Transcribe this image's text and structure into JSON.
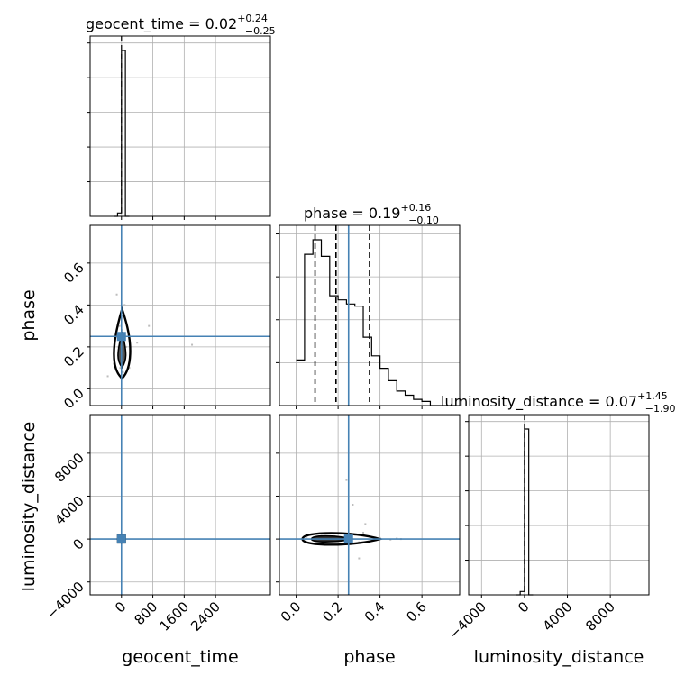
{
  "chart_data": {
    "type": "corner",
    "parameters": [
      "geocent_time",
      "phase",
      "luminosity_distance"
    ],
    "truths": {
      "geocent_time": 0.0,
      "phase": 0.25,
      "luminosity_distance": 0.0
    },
    "accent_color": "#4682b4",
    "grid": true,
    "titles": [
      {
        "param": "geocent_time",
        "label": "geocent_time = 0.02",
        "plus": "+0.24",
        "minus": "−0.25"
      },
      {
        "param": "phase",
        "label": "phase = 0.19",
        "plus": "+0.16",
        "minus": "−0.10"
      },
      {
        "param": "luminosity_distance",
        "label": "luminosity_distance = 0.07",
        "plus": "+1.45",
        "minus": "−1.90"
      }
    ],
    "axes": {
      "geocent_time": {
        "label": "geocent_time",
        "range": [
          -800,
          3800
        ],
        "ticks": [
          0,
          800,
          1600,
          2400
        ],
        "tick_labels": [
          "0",
          "800",
          "1600",
          "2400"
        ]
      },
      "phase": {
        "label": "phase",
        "range": [
          -0.08,
          0.78
        ],
        "ticks": [
          0.0,
          0.2,
          0.4,
          0.6
        ],
        "tick_labels": [
          "0.0",
          "0.2",
          "0.4",
          "0.6"
        ]
      },
      "luminosity_distance": {
        "label": "luminosity_distance",
        "range": [
          -5200,
          11600
        ],
        "ticks": [
          -4000,
          0,
          4000,
          8000
        ],
        "tick_labels": [
          "−4000",
          "0",
          "4000",
          "8000"
        ]
      }
    },
    "hist_geocent_time": {
      "bin_edges": [
        -200,
        -100,
        0,
        100,
        200
      ],
      "counts": [
        0,
        0.02,
        1.0,
        0.0
      ]
    },
    "hist_phase": {
      "bin_edges": [
        0.0,
        0.04,
        0.08,
        0.12,
        0.16,
        0.2,
        0.24,
        0.28,
        0.32,
        0.36,
        0.4,
        0.44,
        0.48,
        0.52,
        0.56,
        0.6,
        0.64,
        0.68,
        0.72,
        0.76
      ],
      "counts": [
        0.22,
        0.73,
        0.8,
        0.72,
        0.53,
        0.51,
        0.49,
        0.48,
        0.33,
        0.24,
        0.18,
        0.12,
        0.07,
        0.05,
        0.03,
        0.02,
        0.0,
        0.0,
        0.0
      ],
      "quantiles": [
        0.09,
        0.19,
        0.35
      ]
    },
    "hist_luminosity_distance": {
      "bin_edges": [
        -800,
        -400,
        0,
        400,
        800
      ],
      "counts": [
        0,
        0.02,
        1.0,
        0.0
      ]
    },
    "scatter_phase_vs_geocent_time": {
      "x": [
        -350,
        -200,
        -120,
        -80,
        -50,
        -30,
        -20,
        -10,
        0,
        5,
        10,
        20,
        40,
        60,
        80,
        120,
        200,
        400,
        700,
        1800
      ],
      "y": [
        0.06,
        0.12,
        0.45,
        0.2,
        0.3,
        0.1,
        0.05,
        0.18,
        0.22,
        0.35,
        0.15,
        0.28,
        0.08,
        0.12,
        0.4,
        0.2,
        0.1,
        0.22,
        0.3,
        0.21
      ]
    },
    "scatter_luminosity_distance_vs_phase": {
      "x": [
        0.05,
        0.1,
        0.12,
        0.18,
        0.2,
        0.22,
        0.25,
        0.28,
        0.3,
        0.32,
        0.35,
        0.38,
        0.4,
        0.45,
        0.48,
        0.5,
        0.24,
        0.27,
        0.3,
        0.33
      ],
      "y": [
        200,
        -100,
        300,
        500,
        -200,
        100,
        0,
        400,
        -300,
        600,
        200,
        -100,
        100,
        -50,
        50,
        0,
        5500,
        3200,
        -1800,
        1400
      ]
    },
    "scatter_luminosity_distance_vs_geocent_time": {
      "x": [
        -60,
        -30,
        0,
        20,
        40,
        60
      ],
      "y": [
        100,
        -200,
        0,
        300,
        -100,
        150
      ]
    }
  }
}
